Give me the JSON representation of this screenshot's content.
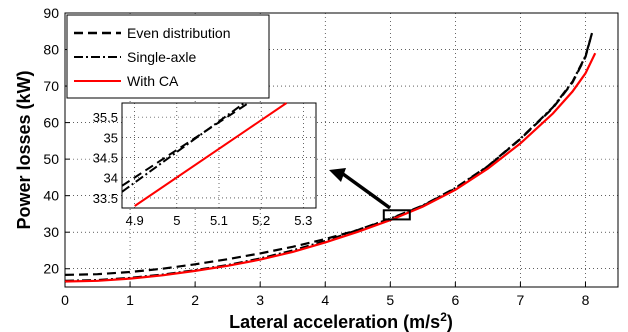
{
  "chart_data": {
    "type": "line",
    "xlabel": "Lateral acceleration (m/s",
    "xlabel_sup": "2",
    "xlabel_end": ")",
    "ylabel": "Power losses (kW)",
    "xlim": [
      0,
      8.5
    ],
    "ylim": [
      15,
      90
    ],
    "xticks": [
      "0",
      "1",
      "2",
      "3",
      "4",
      "5",
      "6",
      "7",
      "8"
    ],
    "yticks": [
      "20",
      "30",
      "40",
      "50",
      "60",
      "70",
      "80",
      "90"
    ],
    "legend_position": "top-left",
    "series": [
      {
        "name": "Even distribution",
        "color": "#000000",
        "style": "dashed",
        "x": [
          0,
          0.5,
          1,
          1.5,
          2,
          2.5,
          3,
          3.5,
          4,
          4.5,
          5,
          5.5,
          6,
          6.5,
          7,
          7.5,
          7.8,
          8.0,
          8.1
        ],
        "y": [
          18.3,
          18.5,
          19.1,
          20.0,
          21.2,
          22.6,
          24.2,
          26.0,
          28.1,
          30.6,
          33.6,
          37.2,
          42.0,
          48.0,
          55.5,
          64.0,
          71.0,
          78.0,
          84.5
        ]
      },
      {
        "name": "Single-axle",
        "color": "#000000",
        "style": "dashdot",
        "x": [
          0,
          0.5,
          1,
          1.5,
          2,
          2.5,
          3,
          3.5,
          4,
          4.5,
          5,
          5.5,
          6,
          6.5,
          7,
          7.5,
          7.8,
          8.0,
          8.1
        ],
        "y": [
          16.7,
          16.9,
          17.5,
          18.4,
          19.6,
          21.0,
          22.8,
          25.0,
          27.6,
          30.6,
          33.7,
          37.3,
          42.1,
          48.1,
          55.6,
          64.2,
          71.2,
          78.2,
          84.5
        ]
      },
      {
        "name": "With CA",
        "color": "#ff0000",
        "style": "solid",
        "x": [
          0,
          0.5,
          1,
          1.5,
          2,
          2.5,
          3,
          3.5,
          4,
          4.5,
          5,
          5.5,
          6,
          6.5,
          7,
          7.5,
          7.8,
          8.0,
          8.15
        ],
        "y": [
          16.5,
          16.7,
          17.3,
          18.2,
          19.4,
          20.8,
          22.5,
          24.6,
          27.2,
          30.1,
          33.3,
          37.0,
          41.6,
          47.4,
          54.3,
          62.5,
          68.5,
          73.5,
          79.0
        ]
      }
    ],
    "inset": {
      "xlim": [
        4.87,
        5.33
      ],
      "ylim": [
        33.25,
        35.85
      ],
      "xticks": [
        "4.9",
        "5",
        "5.1",
        "5.2",
        "5.3"
      ],
      "yticks": [
        "33.5",
        "34",
        "34.5",
        "35",
        "35.5"
      ],
      "zoom_box": {
        "x": [
          4.9,
          5.3
        ],
        "y": [
          33.5,
          36.0
        ]
      },
      "series": [
        {
          "name": "Even distribution",
          "x": [
            4.87,
            5.17
          ],
          "y": [
            33.8,
            35.85
          ]
        },
        {
          "name": "Single-axle",
          "x": [
            4.87,
            5.16
          ],
          "y": [
            33.65,
            35.85
          ]
        },
        {
          "name": "With CA",
          "x": [
            4.9,
            5.26
          ],
          "y": [
            33.3,
            35.85
          ]
        }
      ]
    }
  }
}
